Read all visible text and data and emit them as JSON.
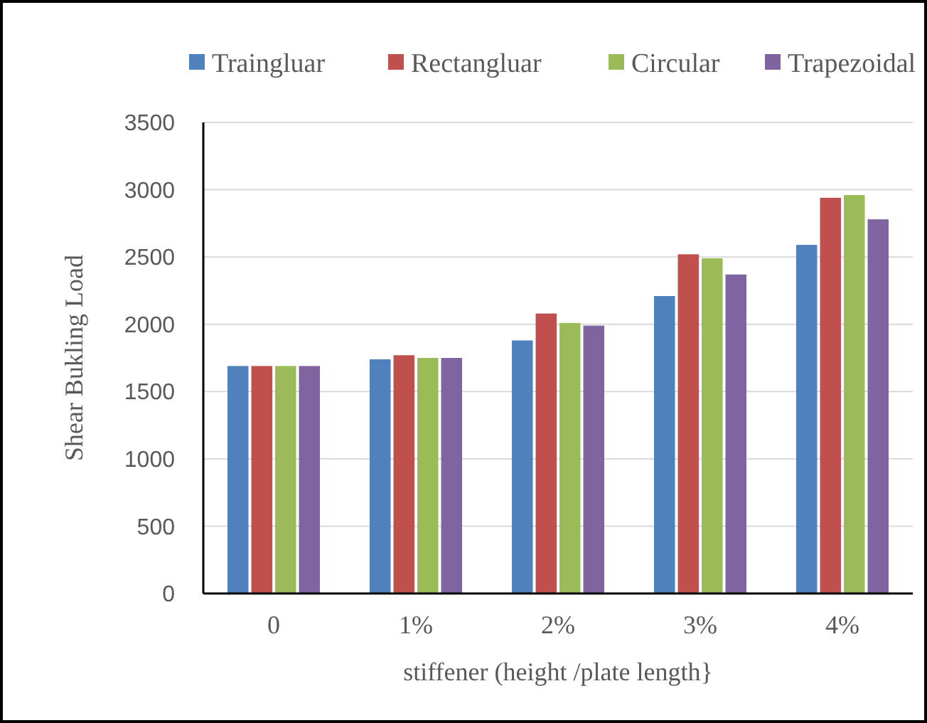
{
  "chart_data": {
    "type": "bar",
    "xlabel": "stiffener (height /plate length}",
    "ylabel": "Shear Bukling Load",
    "categories": [
      "0",
      "1%",
      "2%",
      "3%",
      "4%"
    ],
    "series": [
      {
        "name": "Traingluar",
        "color": "#4f81bd",
        "values": [
          1690,
          1740,
          1880,
          2210,
          2590
        ]
      },
      {
        "name": "Rectangluar",
        "color": "#c0504d",
        "values": [
          1690,
          1770,
          2080,
          2520,
          2940
        ]
      },
      {
        "name": "Circular",
        "color": "#9bbb59",
        "values": [
          1690,
          1750,
          2010,
          2490,
          2960
        ]
      },
      {
        "name": "Trapezoidal",
        "color": "#8064a2",
        "values": [
          1690,
          1750,
          1990,
          2370,
          2780
        ]
      }
    ],
    "ylim": [
      0,
      3500
    ],
    "yticks": [
      0,
      500,
      1000,
      1500,
      2000,
      2500,
      3000,
      3500
    ],
    "grid": "y",
    "legend": "top"
  }
}
